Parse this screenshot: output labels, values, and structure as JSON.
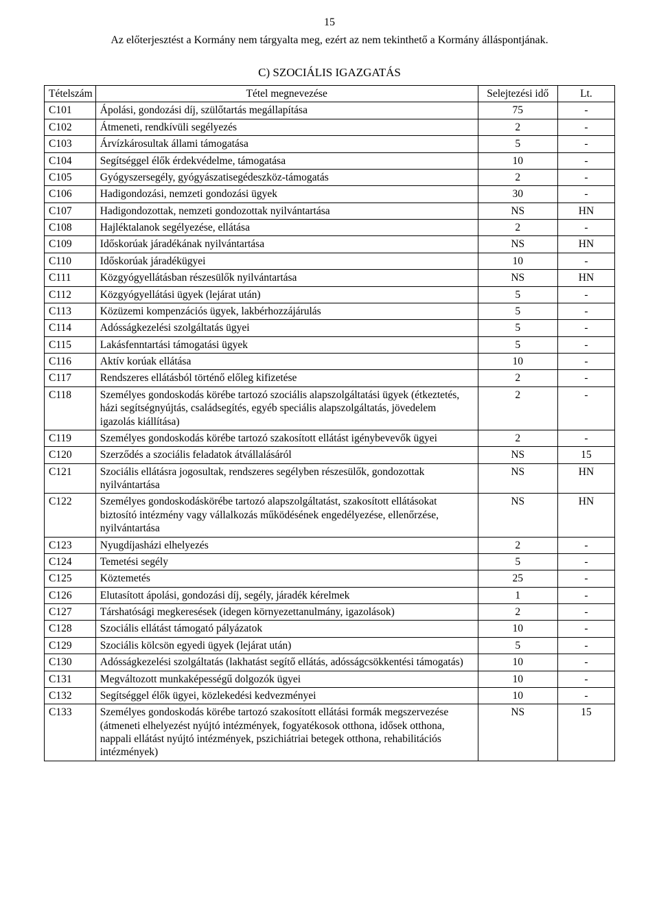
{
  "page_number": "15",
  "header_note": "Az előterjesztést a Kormány nem tárgyalta meg, ezért az nem tekinthető a Kormány álláspontjának.",
  "section_title": "C) SZOCIÁLIS IGAZGATÁS",
  "table": {
    "header": {
      "id": "Tételszám",
      "name": "Tétel megnevezése",
      "time": "Selejtezési idő",
      "lt": "Lt."
    },
    "rows": [
      {
        "id": "C101",
        "name": "Ápolási, gondozási díj, szülőtartás megállapítása",
        "time": "75",
        "lt": "-"
      },
      {
        "id": "C102",
        "name": "Átmeneti, rendkívüli segélyezés",
        "time": "2",
        "lt": "-"
      },
      {
        "id": "C103",
        "name": "Árvízkárosultak állami támogatása",
        "time": "5",
        "lt": "-"
      },
      {
        "id": "C104",
        "name": "Segítséggel élők érdekvédelme, támogatása",
        "time": "10",
        "lt": "-"
      },
      {
        "id": "C105",
        "name": "Gyógyszersegély, gyógyászatisegédeszköz-támogatás",
        "time": "2",
        "lt": "-"
      },
      {
        "id": "C106",
        "name": "Hadigondozási, nemzeti gondozási ügyek",
        "time": "30",
        "lt": "-"
      },
      {
        "id": "C107",
        "name": "Hadigondozottak, nemzeti gondozottak nyilvántartása",
        "time": "NS",
        "lt": "HN"
      },
      {
        "id": "C108",
        "name": "Hajléktalanok segélyezése, ellátása",
        "time": "2",
        "lt": "-"
      },
      {
        "id": "C109",
        "name": "Időskorúak járadékának nyilvántartása",
        "time": "NS",
        "lt": "HN"
      },
      {
        "id": "C110",
        "name": "Időskorúak járadékügyei",
        "time": "10",
        "lt": "-"
      },
      {
        "id": "C111",
        "name": "Közgyógyellátásban részesülők nyilvántartása",
        "time": "NS",
        "lt": "HN"
      },
      {
        "id": "C112",
        "name": "Közgyógyellátási ügyek (lejárat után)",
        "time": "5",
        "lt": "-"
      },
      {
        "id": "C113",
        "name": "Közüzemi kompenzációs ügyek, lakbérhozzájárulás",
        "time": "5",
        "lt": "-"
      },
      {
        "id": "C114",
        "name": "Adósságkezelési szolgáltatás ügyei",
        "time": "5",
        "lt": "-"
      },
      {
        "id": "C115",
        "name": "Lakásfenntartási támogatási ügyek",
        "time": "5",
        "lt": "-"
      },
      {
        "id": "C116",
        "name": "Aktív korúak ellátása",
        "time": "10",
        "lt": "-"
      },
      {
        "id": "C117",
        "name": "Rendszeres ellátásból történő előleg kifizetése",
        "time": "2",
        "lt": "-"
      },
      {
        "id": "C118",
        "name": "Személyes gondoskodás körébe tartozó szociális alapszolgáltatási ügyek (étkeztetés, házi segítségnyújtás, családsegítés, egyéb speciális alapszolgáltatás, jövedelem igazolás kiállítása)",
        "time": "2",
        "lt": "-"
      },
      {
        "id": "C119",
        "name": "Személyes gondoskodás körébe tartozó szakosított ellátást igénybevevők ügyei",
        "time": "2",
        "lt": "-"
      },
      {
        "id": "C120",
        "name": "Szerződés a szociális feladatok átvállalásáról",
        "time": "NS",
        "lt": "15"
      },
      {
        "id": "C121",
        "name": "Szociális ellátásra jogosultak, rendszeres segélyben részesülők, gondozottak nyilvántartása",
        "time": "NS",
        "lt": "HN"
      },
      {
        "id": "C122",
        "name": "Személyes gondoskodáskörébe tartozó alapszolgáltatást, szakosított ellátásokat biztosító intézmény vagy vállalkozás működésének engedélyezése, ellenőrzése, nyilvántartása",
        "time": "NS",
        "lt": "HN"
      },
      {
        "id": "C123",
        "name": "Nyugdíjasházi elhelyezés",
        "time": "2",
        "lt": "-"
      },
      {
        "id": "C124",
        "name": "Temetési segély",
        "time": "5",
        "lt": "-"
      },
      {
        "id": "C125",
        "name": "Köztemetés",
        "time": "25",
        "lt": "-"
      },
      {
        "id": "C126",
        "name": "Elutasított ápolási, gondozási díj, segély, járadék kérelmek",
        "time": "1",
        "lt": "-"
      },
      {
        "id": "C127",
        "name": "Társhatósági megkeresések (idegen környezettanulmány, igazolások)",
        "time": "2",
        "lt": "-"
      },
      {
        "id": "C128",
        "name": "Szociális ellátást támogató pályázatok",
        "time": "10",
        "lt": "-"
      },
      {
        "id": "C129",
        "name": "Szociális kölcsön egyedi ügyek (lejárat után)",
        "time": "5",
        "lt": "-"
      },
      {
        "id": "C130",
        "name": "Adósságkezelési szolgáltatás (lakhatást segítő ellátás, adósságcsökkentési támogatás)",
        "time": "10",
        "lt": "-"
      },
      {
        "id": "C131",
        "name": "Megváltozott munkaképességű dolgozók ügyei",
        "time": "10",
        "lt": "-"
      },
      {
        "id": "C132",
        "name": "Segítséggel élők ügyei, közlekedési kedvezményei",
        "time": "10",
        "lt": "-"
      },
      {
        "id": "C133",
        "name": "Személyes gondoskodás körébe tartozó szakosított ellátási formák megszervezése (átmeneti elhelyezést nyújtó intézmények, fogyatékosok otthona, idősek otthona, nappali ellátást nyújtó intézmények, pszichiátriai betegek otthona, rehabilitációs intézmények)",
        "time": "NS",
        "lt": "15"
      }
    ]
  }
}
